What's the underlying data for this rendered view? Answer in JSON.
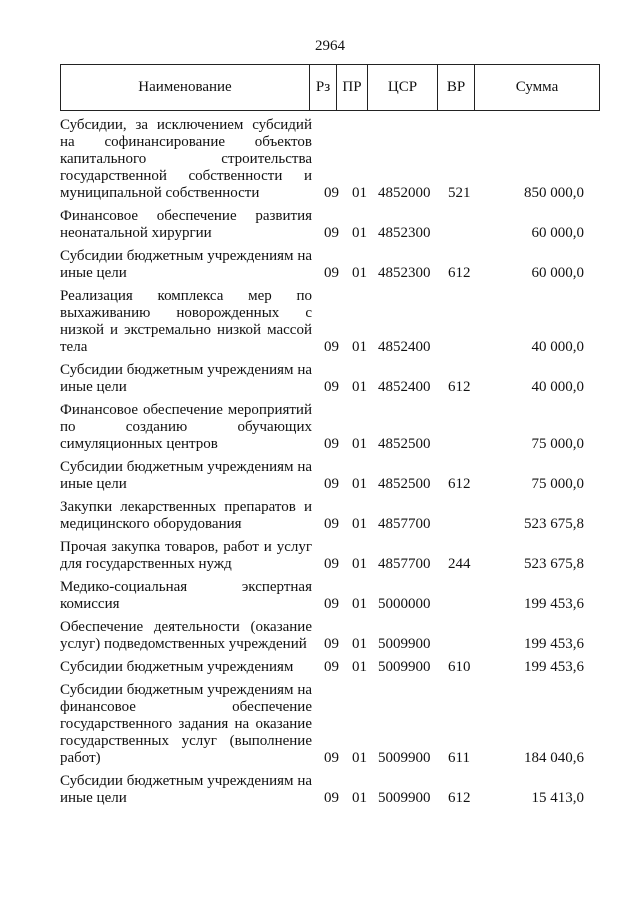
{
  "page_number": "2964",
  "header": {
    "name": "Наименование",
    "rz": "Рз",
    "pr": "ПР",
    "csr": "ЦСР",
    "vr": "ВР",
    "sum": "Сумма"
  },
  "rows": [
    {
      "name_lines": [
        "Субсидии, за исключением субсидий",
        "на софинансирование объектов",
        "капитального строительства",
        "государственной собственности и",
        "муниципальной собственности"
      ],
      "rz": "09",
      "pr": "01",
      "csr": "4852000",
      "vr": "521",
      "sum": "850 000,0"
    },
    {
      "name_lines": [
        "Финансовое обеспечение развития",
        "неонатальной хирургии"
      ],
      "rz": "09",
      "pr": "01",
      "csr": "4852300",
      "vr": "",
      "sum": "60 000,0"
    },
    {
      "name_lines": [
        "Субсидии бюджетным учреждениям на",
        "иные цели"
      ],
      "rz": "09",
      "pr": "01",
      "csr": "4852300",
      "vr": "612",
      "sum": "60 000,0"
    },
    {
      "name_lines": [
        "Реализация комплекса мер по",
        "выхаживанию новорожденных с",
        "низкой и экстремально низкой массой",
        "тела"
      ],
      "rz": "09",
      "pr": "01",
      "csr": "4852400",
      "vr": "",
      "sum": "40 000,0"
    },
    {
      "name_lines": [
        "Субсидии бюджетным учреждениям на",
        "иные цели"
      ],
      "rz": "09",
      "pr": "01",
      "csr": "4852400",
      "vr": "612",
      "sum": "40 000,0"
    },
    {
      "name_lines": [
        "Финансовое обеспечение мероприятий",
        "по созданию обучающих",
        "симуляционных центров"
      ],
      "rz": "09",
      "pr": "01",
      "csr": "4852500",
      "vr": "",
      "sum": "75 000,0"
    },
    {
      "name_lines": [
        "Субсидии бюджетным учреждениям на",
        "иные цели"
      ],
      "rz": "09",
      "pr": "01",
      "csr": "4852500",
      "vr": "612",
      "sum": "75 000,0"
    },
    {
      "name_lines": [
        "Закупки лекарственных препаратов и",
        "медицинского оборудования"
      ],
      "rz": "09",
      "pr": "01",
      "csr": "4857700",
      "vr": "",
      "sum": "523 675,8"
    },
    {
      "name_lines": [
        "Прочая закупка товаров, работ и услуг",
        "для государственных нужд"
      ],
      "rz": "09",
      "pr": "01",
      "csr": "4857700",
      "vr": "244",
      "sum": "523 675,8"
    },
    {
      "name_lines": [
        "Медико-социальная экспертная",
        "комиссия"
      ],
      "rz": "09",
      "pr": "01",
      "csr": "5000000",
      "vr": "",
      "sum": "199 453,6"
    },
    {
      "name_lines": [
        "Обеспечение деятельности (оказание",
        "услуг) подведомственных учреждений"
      ],
      "rz": "09",
      "pr": "01",
      "csr": "5009900",
      "vr": "",
      "sum": "199 453,6"
    },
    {
      "name_lines": [
        "Субсидии бюджетным учреждениям"
      ],
      "rz": "09",
      "pr": "01",
      "csr": "5009900",
      "vr": "610",
      "sum": "199 453,6"
    },
    {
      "name_lines": [
        "Субсидии бюджетным учреждениям на",
        "финансовое обеспечение",
        "государственного задания на оказание",
        "государственных услуг (выполнение",
        "работ)"
      ],
      "rz": "09",
      "pr": "01",
      "csr": "5009900",
      "vr": "611",
      "sum": "184 040,6"
    },
    {
      "name_lines": [
        "Субсидии бюджетным учреждениям на",
        "иные цели"
      ],
      "rz": "09",
      "pr": "01",
      "csr": "5009900",
      "vr": "612",
      "sum": "15 413,0"
    }
  ]
}
